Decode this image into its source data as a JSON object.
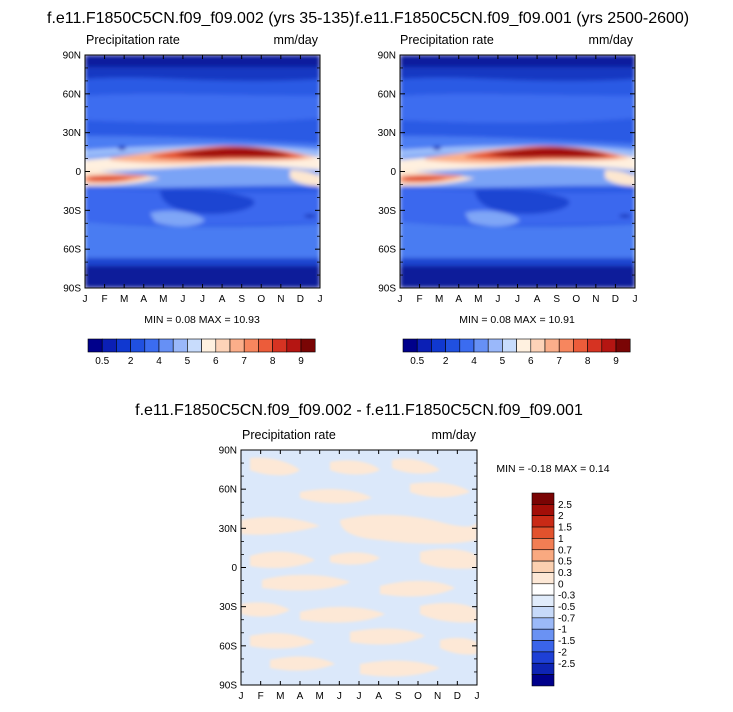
{
  "colors": {
    "ramp": [
      "#00008b",
      "#0b1fb5",
      "#1038d0",
      "#2050e0",
      "#3b6cf0",
      "#6690f5",
      "#9ab8fa",
      "#c8dcfc",
      "#fff1e0",
      "#fdd3b8",
      "#fbae8a",
      "#f7865e",
      "#ec5c3a",
      "#d63322",
      "#b51512",
      "#7a0505"
    ],
    "diff_ramp": [
      "#00008b",
      "#0e24b4",
      "#1e40d6",
      "#3a64ea",
      "#6a92f3",
      "#9bb9f8",
      "#c7daf9",
      "#e1ecfb",
      "#ffffff",
      "#fde8d6",
      "#fbd0b0",
      "#f9a980",
      "#f27e54",
      "#e2522d",
      "#c92a16",
      "#a30e08",
      "#7a0404"
    ],
    "diff_pos": "#fde8d6",
    "diff_neg": "#dbe8fa"
  },
  "chart_data": [
    {
      "type": "heatmap",
      "title": "f.e11.F1850C5CN.f09_f09.002 (yrs 35-135)",
      "left_label": "Precipitation rate",
      "right_label": "mm/day",
      "x_tick_labels": [
        "J",
        "F",
        "M",
        "A",
        "M",
        "J",
        "J",
        "A",
        "S",
        "O",
        "N",
        "D",
        "J"
      ],
      "y_tick_labels": [
        "90N",
        "60N",
        "30N",
        "0",
        "30S",
        "60S",
        "90S"
      ],
      "y_ticks": [
        90,
        60,
        30,
        0,
        -30,
        -60,
        -90
      ],
      "stats": {
        "min_label": "MIN =",
        "min": "0.08",
        "max_label": "MAX =",
        "max": "10.93"
      },
      "colorbar_labels": [
        "0.5",
        "2",
        "4",
        "5",
        "6",
        "7",
        "8",
        "9"
      ]
    },
    {
      "type": "heatmap",
      "title": "f.e11.F1850C5CN.f09_f09.001 (yrs 2500-2600)",
      "left_label": "Precipitation rate",
      "right_label": "mm/day",
      "x_tick_labels": [
        "J",
        "F",
        "M",
        "A",
        "M",
        "J",
        "J",
        "A",
        "S",
        "O",
        "N",
        "D",
        "J"
      ],
      "y_tick_labels": [
        "90N",
        "60N",
        "30N",
        "0",
        "30S",
        "60S",
        "90S"
      ],
      "y_ticks": [
        90,
        60,
        30,
        0,
        -30,
        -60,
        -90
      ],
      "stats": {
        "min_label": "MIN =",
        "min": "0.08",
        "max_label": "MAX =",
        "max": "10.91"
      },
      "colorbar_labels": [
        "0.5",
        "2",
        "4",
        "5",
        "6",
        "7",
        "8",
        "9"
      ]
    },
    {
      "type": "heatmap",
      "title": "f.e11.F1850C5CN.f09_f09.002 - f.e11.F1850C5CN.f09_f09.001",
      "left_label": "Precipitation rate",
      "right_label": "mm/day",
      "x_tick_labels": [
        "J",
        "F",
        "M",
        "A",
        "M",
        "J",
        "J",
        "A",
        "S",
        "O",
        "N",
        "D",
        "J"
      ],
      "y_tick_labels": [
        "90N",
        "60N",
        "30N",
        "0",
        "30S",
        "60S",
        "90S"
      ],
      "y_ticks": [
        90,
        60,
        30,
        0,
        -30,
        -60,
        -90
      ],
      "stats": {
        "min_label": "MIN =",
        "min": "-0.18",
        "max_label": "MAX =",
        "max": "0.14"
      },
      "colorbar_labels": [
        "2.5",
        "2",
        "1.5",
        "1",
        "0.7",
        "0.5",
        "0.3",
        "0",
        "-0.3",
        "-0.5",
        "-0.7",
        "-1",
        "-1.5",
        "-2",
        "-2.5"
      ]
    }
  ]
}
